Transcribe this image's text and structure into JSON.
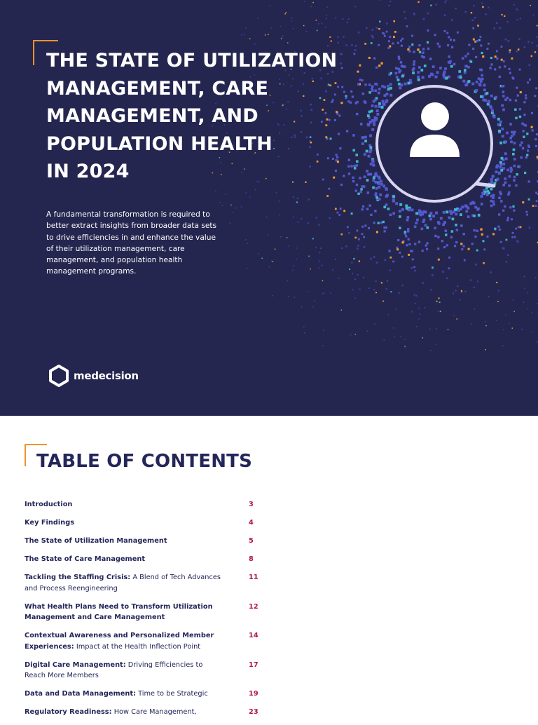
{
  "cover": {
    "title_lines": [
      "THE STATE OF UTILIZATION",
      "MANAGEMENT, CARE",
      "MANAGEMENT, AND",
      "POPULATION HEALTH",
      "IN 2024"
    ],
    "description": "A fundamental transformation is required to better extract insights from broader data sets to drive efficiencies in and enhance the value of their utilization management, care management, and population health management programs.",
    "logo": "medecision"
  },
  "toc": {
    "title": "TABLE OF CONTENTS",
    "entries": [
      {
        "bold": "Introduction",
        "page": 3
      },
      {
        "bold": "Key Findings",
        "page": 4
      },
      {
        "bold": "The State of Utilization Management",
        "page": 5
      },
      {
        "bold": "The State of Care Management",
        "page": 8
      },
      {
        "bold": "Tackling the Staffing Crisis:",
        "rest": "A Blend of Tech Advances and Process Reengineering",
        "page": 11
      },
      {
        "bold": "What Health Plans Need to Transform Utilization Management and Care Management",
        "page": 12
      },
      {
        "bold": "Contextual Awareness and Personalized Member Experiences:",
        "rest": "Impact at the Health Inflection Point",
        "page": 14
      },
      {
        "bold": "Digital Care Management:",
        "rest": "Driving Efficiencies to Reach More Members",
        "page": 17
      },
      {
        "bold": "Data and Data Management:",
        "rest": "Time to be Strategic",
        "page": 19
      },
      {
        "bold": "Regulatory Readiness:",
        "rest": "How Care Management,",
        "page": 23
      }
    ]
  }
}
